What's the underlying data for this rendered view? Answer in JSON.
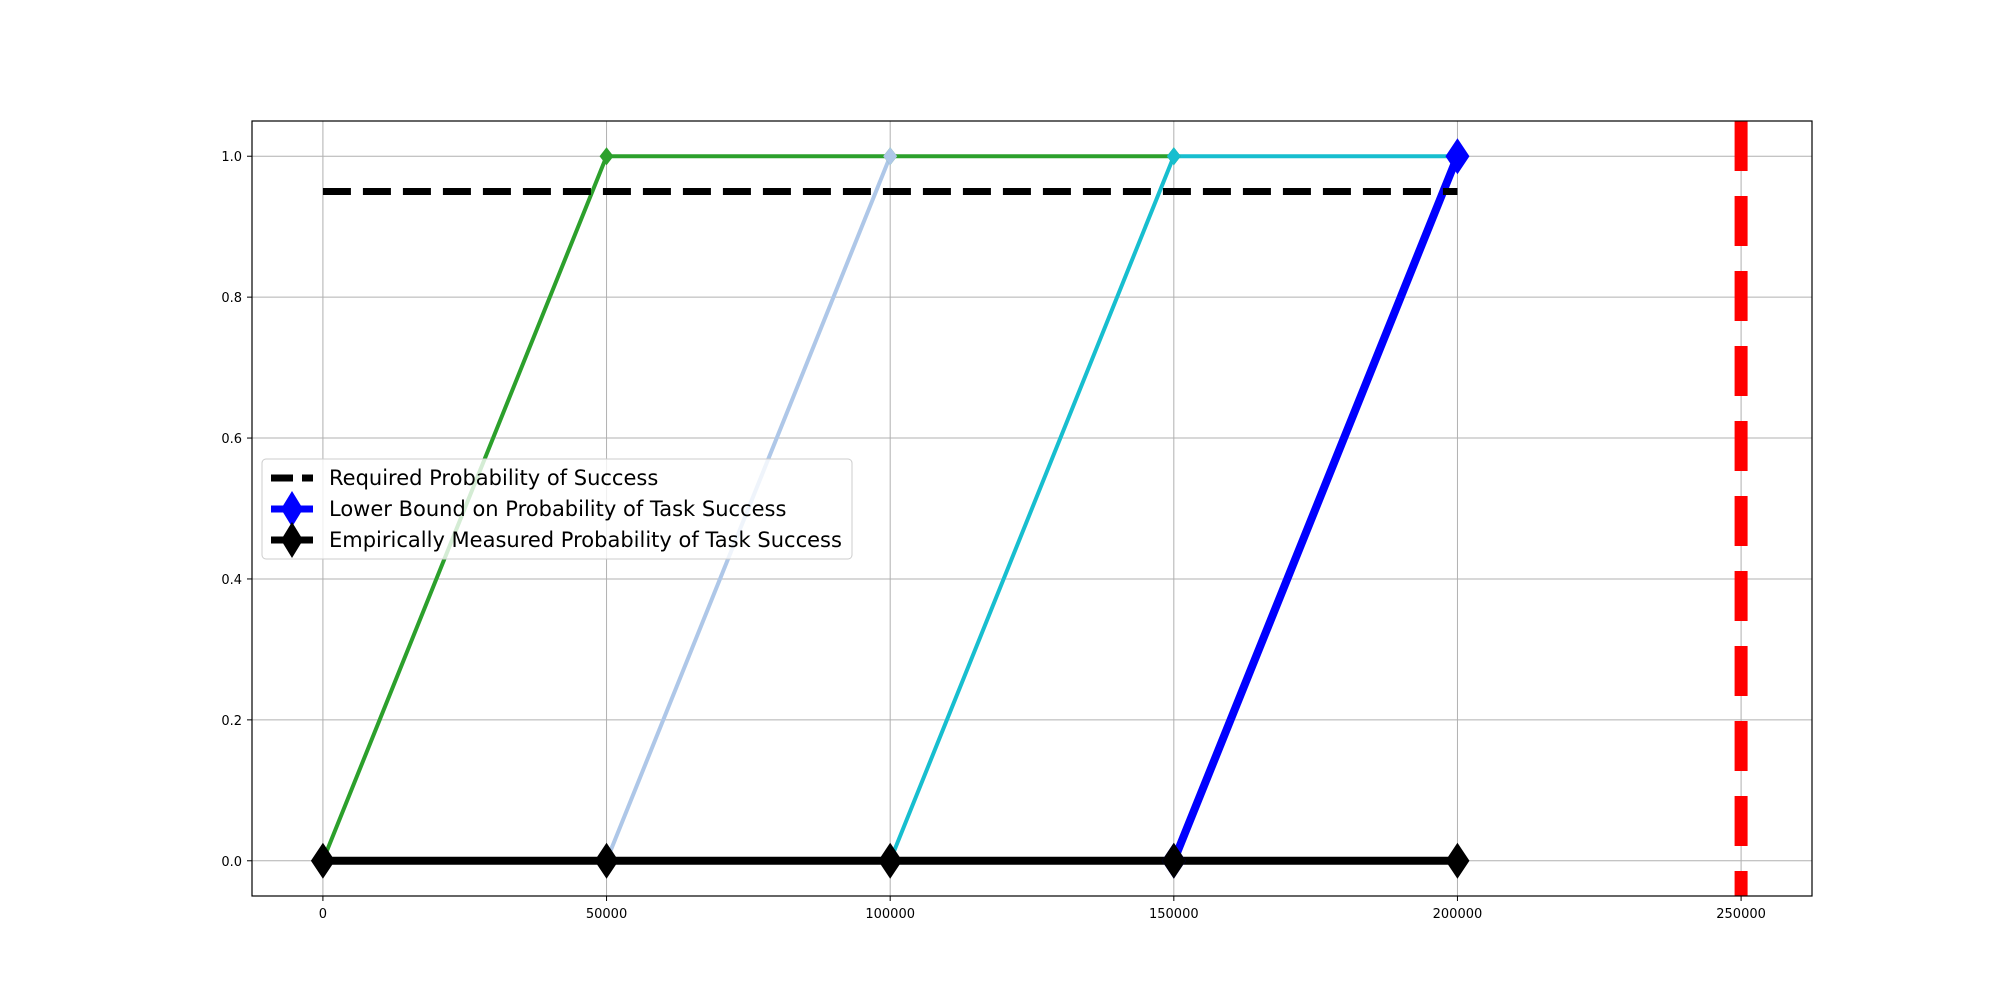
{
  "chart_data": {
    "type": "line",
    "title": "",
    "xlabel": "",
    "ylabel": "",
    "xlim": [
      -12500,
      262500
    ],
    "ylim": [
      -0.05,
      1.05
    ],
    "x_ticks": [
      "0",
      "50000",
      "100000",
      "150000",
      "200000",
      "250000"
    ],
    "x_tick_values": [
      0,
      50000,
      100000,
      150000,
      200000,
      250000
    ],
    "y_ticks": [
      "0.0",
      "0.2",
      "0.4",
      "0.6",
      "0.8",
      "1.0"
    ],
    "y_tick_values": [
      0.0,
      0.2,
      0.4,
      0.6,
      0.8,
      1.0
    ],
    "grid": true,
    "legend_location": "center-left",
    "legend": [
      {
        "label": "Required Probability of Success",
        "color": "#000000",
        "style": "dashed"
      },
      {
        "label": "Lower Bound on Probability of Task Success",
        "color": "#0000ff",
        "style": "solid",
        "marker": "diamond"
      },
      {
        "label": "Empirically Measured Probability of Task Success",
        "color": "#000000",
        "style": "solid",
        "marker": "diamond"
      }
    ],
    "series": [
      {
        "x": [
          0,
          50000,
          100000,
          150000
        ],
        "y": [
          0.0,
          1.0,
          1.0,
          1.0
        ],
        "color": "#2ca02c",
        "style": "solid",
        "marker": "diamond"
      },
      {
        "x": [
          50000,
          100000
        ],
        "y": [
          0.0,
          1.0
        ],
        "color": "#aec7e8",
        "style": "solid",
        "marker": "diamond"
      },
      {
        "x": [
          100000,
          150000,
          200000
        ],
        "y": [
          0.0,
          1.0,
          1.0
        ],
        "color": "#17becf",
        "style": "solid",
        "marker": "diamond"
      },
      {
        "name": "Lower Bound on Probability of Task Success",
        "x": [
          150000,
          200000
        ],
        "y": [
          0.0,
          1.0
        ],
        "color": "#0000ff",
        "style": "solid",
        "marker": "diamond"
      },
      {
        "name": "Empirically Measured Probability of Task Success",
        "x": [
          0,
          50000,
          100000,
          150000,
          200000
        ],
        "y": [
          0.0,
          0.0,
          0.0,
          0.0,
          0.0
        ],
        "color": "#000000",
        "style": "solid",
        "marker": "diamond"
      },
      {
        "name": "Required Probability of Success",
        "x": [
          0,
          200000
        ],
        "y": [
          0.95,
          0.95
        ],
        "color": "#000000",
        "style": "dashed"
      }
    ],
    "vertical_line": {
      "x": 250000,
      "color": "#ff0000",
      "style": "dashed"
    }
  }
}
